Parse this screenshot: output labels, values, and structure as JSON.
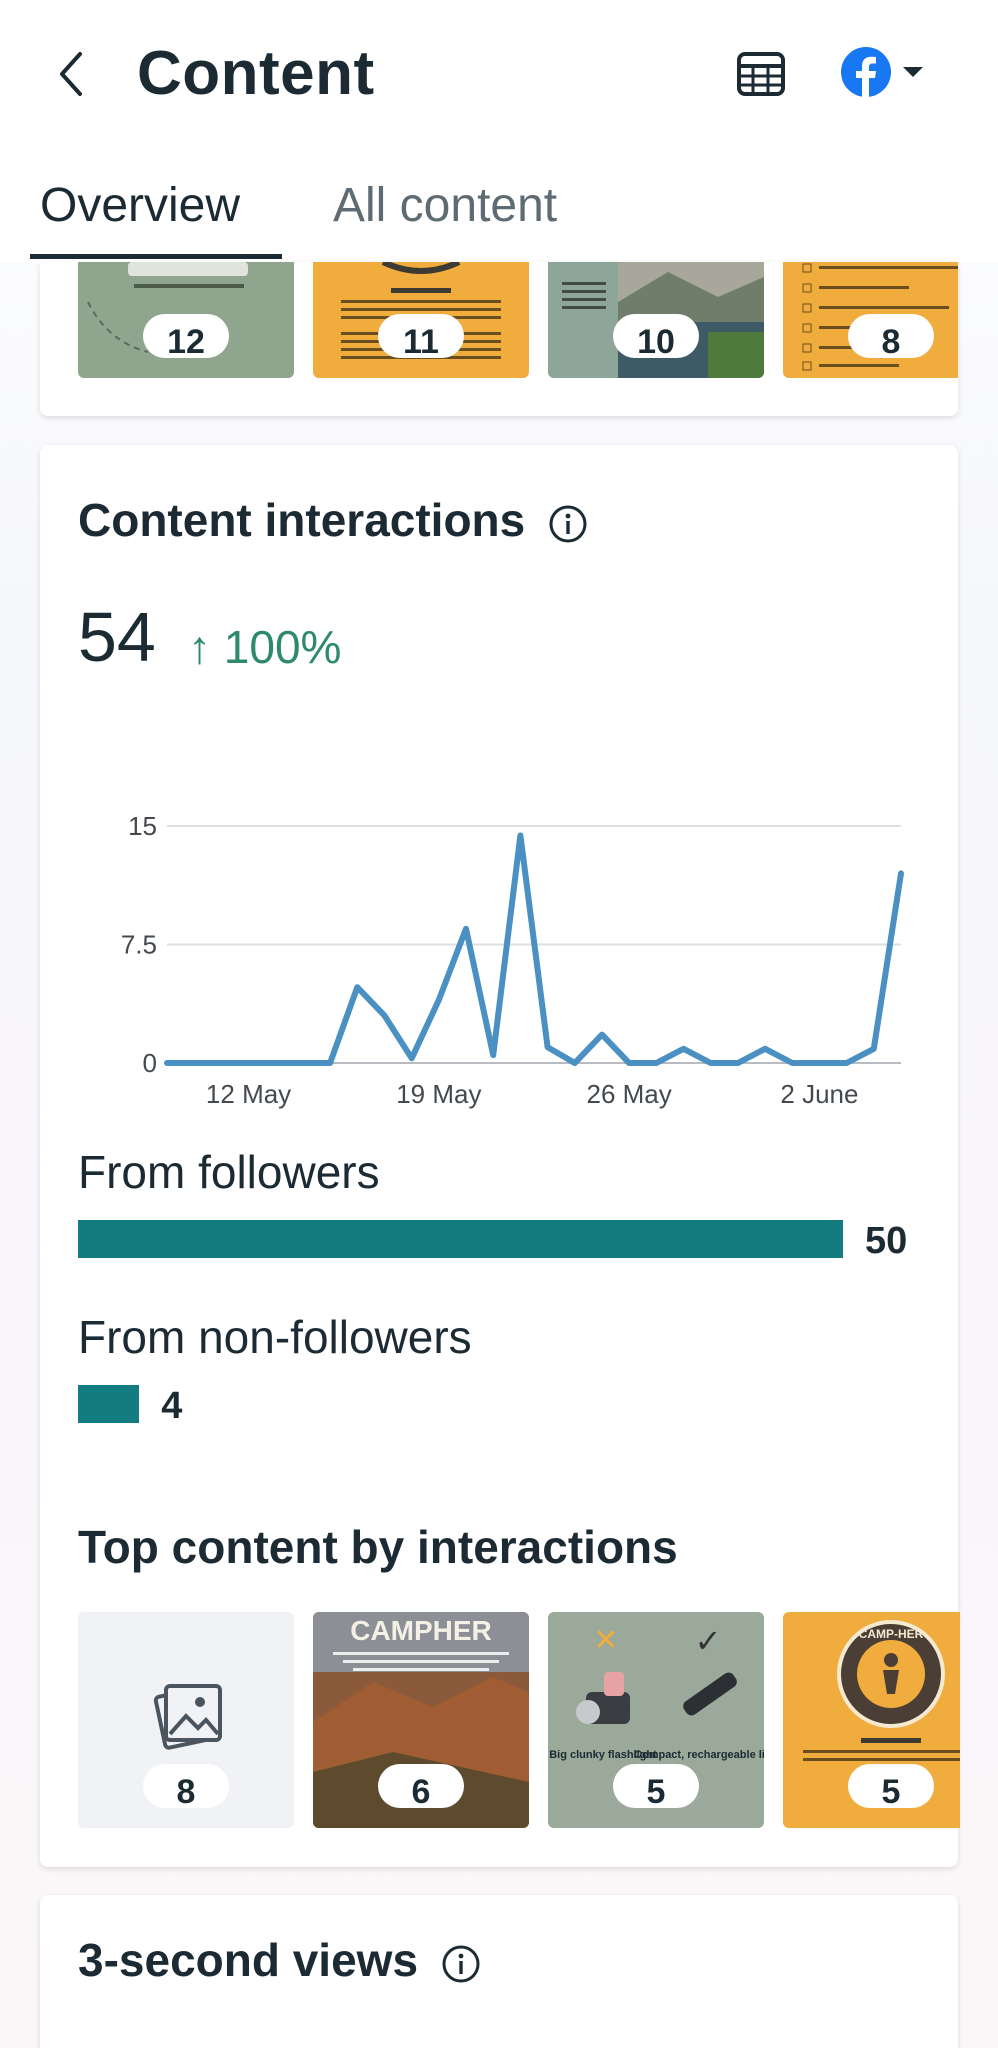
{
  "header": {
    "title": "Content",
    "back_icon": "chevron-left-icon",
    "table_icon": "table-icon",
    "platform_icon": "facebook-icon",
    "dropdown_icon": "caret-down-icon"
  },
  "tabs": [
    {
      "label": "Overview",
      "active": true
    },
    {
      "label": "All content",
      "active": false
    }
  ],
  "top_strip": {
    "items": [
      {
        "count": "12",
        "bg": "#8fa58e"
      },
      {
        "count": "11",
        "bg": "#f0ad3d"
      },
      {
        "count": "10",
        "bg": "#8ea59a"
      },
      {
        "count": "8",
        "bg": "#f0ad3d"
      }
    ]
  },
  "interactions": {
    "title": "Content interactions",
    "info_icon": "info-icon",
    "total": "54",
    "change": "↑ 100%",
    "change_color": "#2f8a6d"
  },
  "chart_data": {
    "type": "line",
    "x_ticks": [
      "12 May",
      "19 May",
      "26 May",
      "2 June"
    ],
    "y_ticks": [
      "15",
      "7.5",
      "0"
    ],
    "ylim": [
      0,
      15
    ],
    "grid": true,
    "series": [
      {
        "color": "#4a90c2",
        "x": [
          "9 May",
          "10 May",
          "11 May",
          "12 May",
          "13 May",
          "14 May",
          "15 May",
          "16 May",
          "17 May",
          "18 May",
          "19 May",
          "20 May",
          "21 May",
          "22 May",
          "23 May",
          "24 May",
          "25 May",
          "26 May",
          "27 May",
          "28 May",
          "29 May",
          "30 May",
          "31 May",
          "1 June",
          "2 June",
          "3 June",
          "4 June",
          "5 June"
        ],
        "values": [
          0,
          0,
          0,
          0,
          0,
          0,
          0,
          4.8,
          3,
          0.3,
          4,
          8.5,
          0.5,
          14.4,
          1,
          0,
          1.8,
          0,
          0,
          0.9,
          0,
          0,
          0.9,
          0,
          0,
          0,
          0.9,
          12
        ]
      }
    ]
  },
  "breakdown": {
    "followers": {
      "label": "From followers",
      "value": 50,
      "display": "50"
    },
    "non_followers": {
      "label": "From non-followers",
      "value": 4,
      "display": "4"
    },
    "bar_color": "#137c7f",
    "max": 50
  },
  "top_content": {
    "title": "Top content by interactions",
    "items": [
      {
        "count": "8",
        "kind": "placeholder",
        "icon": "image-placeholder-icon"
      },
      {
        "count": "6",
        "kind": "photo",
        "caption": "CAMPHER"
      },
      {
        "count": "5",
        "kind": "photo",
        "caption_left": "Big clunky flashlight",
        "caption_right": "Compact, rechargeable light"
      },
      {
        "count": "5",
        "kind": "logo",
        "caption": "CAMP-HER"
      }
    ]
  },
  "views": {
    "title": "3-second views",
    "info_icon": "info-icon"
  }
}
